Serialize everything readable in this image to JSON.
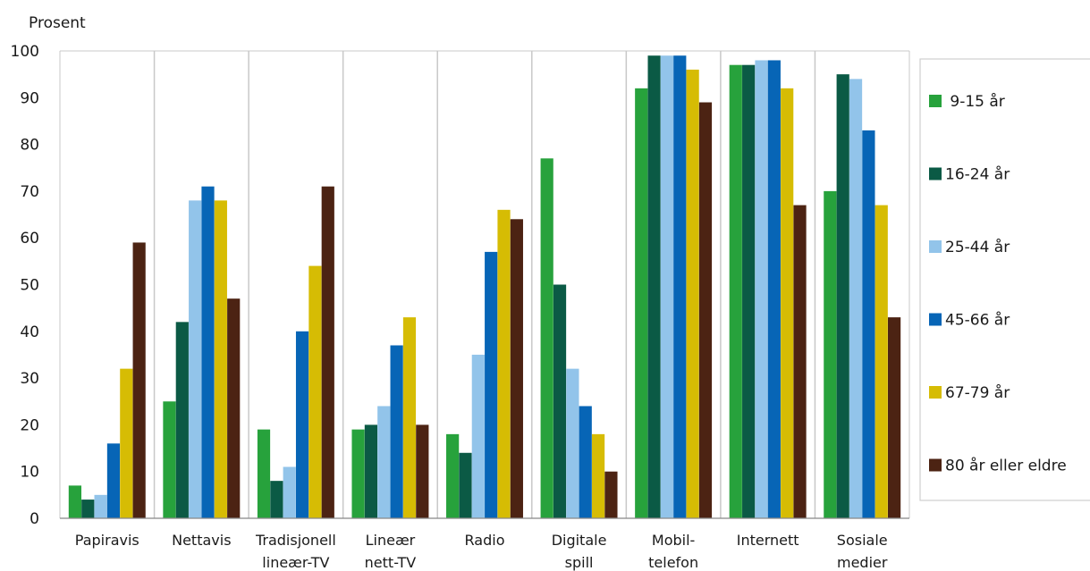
{
  "chart_data": {
    "type": "bar",
    "ylabel": "Prosent",
    "ylim": [
      0,
      100
    ],
    "yticks": [
      "0",
      "10",
      "20",
      "30",
      "40",
      "50",
      "60",
      "70",
      "80",
      "90",
      "100"
    ],
    "grid": "vertical category separators",
    "legend_placement": "right",
    "categories": [
      [
        "Papiravis"
      ],
      [
        "Nettavis"
      ],
      [
        "Tradisjonell",
        "lineær-TV"
      ],
      [
        "Lineær",
        "nett-TV"
      ],
      [
        "Radio"
      ],
      [
        "Digitale",
        "spill"
      ],
      [
        "Mobil-",
        "telefon"
      ],
      [
        "Internett"
      ],
      [
        "Sosiale",
        "medier"
      ]
    ],
    "series": [
      {
        "name": " 9-15 år",
        "color": "#27a23c",
        "values": [
          7,
          25,
          19,
          19,
          18,
          77,
          92,
          97,
          70
        ]
      },
      {
        "name": "16-24 år",
        "color": "#0b5a45",
        "values": [
          4,
          42,
          8,
          20,
          14,
          50,
          99,
          97,
          95
        ]
      },
      {
        "name": "25-44 år",
        "color": "#92c4ea",
        "values": [
          5,
          68,
          11,
          24,
          35,
          32,
          99,
          98,
          94
        ]
      },
      {
        "name": "45-66 år",
        "color": "#0765b6",
        "values": [
          16,
          71,
          40,
          37,
          57,
          24,
          99,
          98,
          83
        ]
      },
      {
        "name": "67-79 år",
        "color": "#d6bc04",
        "values": [
          32,
          68,
          54,
          43,
          66,
          18,
          96,
          92,
          67
        ]
      },
      {
        "name": "80 år eller eldre",
        "color": "#4c2313",
        "values": [
          59,
          47,
          71,
          20,
          64,
          10,
          89,
          67,
          43
        ]
      }
    ]
  }
}
